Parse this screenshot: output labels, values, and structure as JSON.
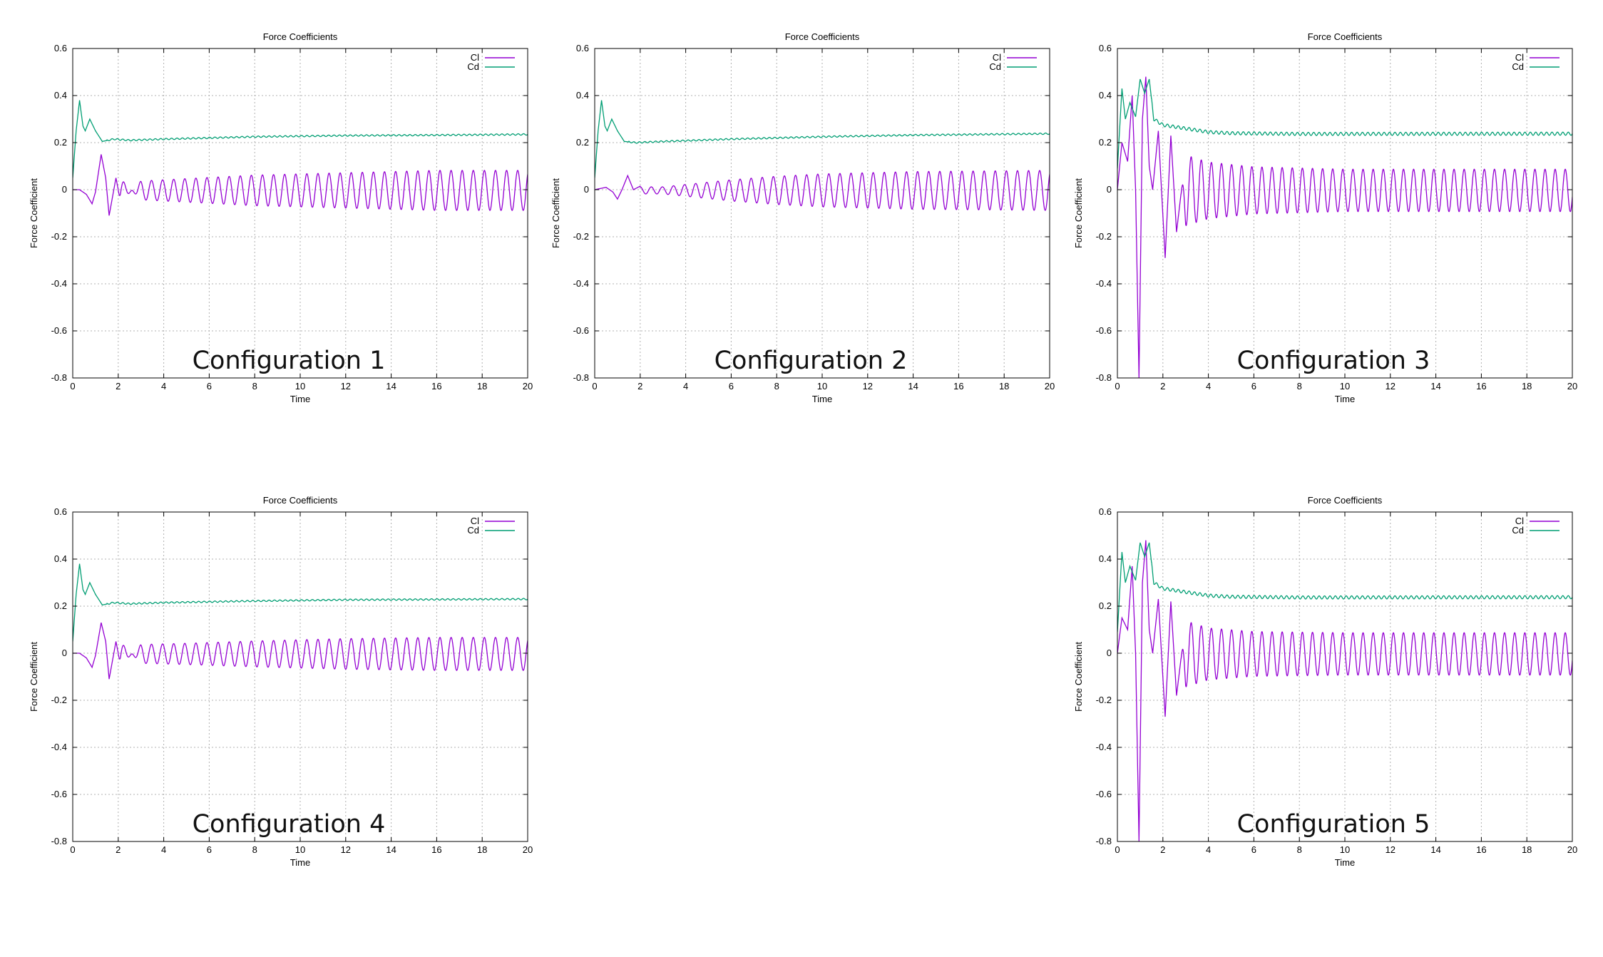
{
  "captions": [
    "Configuration 1",
    "Configuration 2",
    "Configuration 3",
    "Configuration 4",
    "Configuration 5"
  ],
  "colors": {
    "cl": "#9400d3",
    "cd": "#009e73",
    "grid": "#b0b0b0"
  },
  "chart_data": [
    {
      "type": "line",
      "title": "Force Coefficients",
      "xlabel": "Time",
      "ylabel": "Force Coefficient",
      "xlim": [
        0,
        20
      ],
      "ylim": [
        -0.8,
        0.6
      ],
      "xticks": [
        "0",
        "2",
        "4",
        "6",
        "8",
        "10",
        "12",
        "14",
        "16",
        "18",
        "20"
      ],
      "yticks": [
        "0.6",
        "0.4",
        "0.2",
        "0",
        "-0.2",
        "-0.4",
        "-0.6",
        "-0.8"
      ],
      "grid": true,
      "legend": "top-right",
      "series": [
        {
          "name": "Cl",
          "color": "#9400d3",
          "frequency": 2.05,
          "keypoints": [
            [
              0,
              0
            ],
            [
              0.3,
              0.0
            ],
            [
              0.6,
              -0.02
            ],
            [
              0.85,
              -0.06
            ],
            [
              1.0,
              -0.01
            ],
            [
              1.25,
              0.15
            ],
            [
              1.45,
              0.05
            ],
            [
              1.6,
              -0.11
            ],
            [
              1.9,
              0.05
            ],
            [
              2.1,
              -0.05
            ],
            [
              3,
              0.04
            ],
            [
              5,
              0.05
            ],
            [
              8,
              0.065
            ],
            [
              12,
              0.075
            ],
            [
              16,
              0.085
            ],
            [
              20,
              0.085
            ]
          ]
        },
        {
          "name": "Cd",
          "color": "#009e73",
          "keypoints": [
            [
              0,
              0.05
            ],
            [
              0.15,
              0.25
            ],
            [
              0.3,
              0.38
            ],
            [
              0.45,
              0.27
            ],
            [
              0.55,
              0.25
            ],
            [
              0.75,
              0.3
            ],
            [
              1.0,
              0.25
            ],
            [
              1.3,
              0.205
            ],
            [
              1.8,
              0.215
            ],
            [
              2.5,
              0.21
            ],
            [
              4,
              0.215
            ],
            [
              8,
              0.225
            ],
            [
              12,
              0.23
            ],
            [
              16,
              0.232
            ],
            [
              20,
              0.235
            ]
          ]
        }
      ]
    },
    {
      "type": "line",
      "title": "Force Coefficients",
      "xlabel": "Time",
      "ylabel": "Force Coefficient",
      "xlim": [
        0,
        20
      ],
      "ylim": [
        -0.8,
        0.6
      ],
      "xticks": [
        "0",
        "2",
        "4",
        "6",
        "8",
        "10",
        "12",
        "14",
        "16",
        "18",
        "20"
      ],
      "yticks": [
        "0.6",
        "0.4",
        "0.2",
        "0",
        "-0.2",
        "-0.4",
        "-0.6",
        "-0.8"
      ],
      "grid": true,
      "legend": "top-right",
      "series": [
        {
          "name": "Cl",
          "color": "#9400d3",
          "frequency": 2.05,
          "keypoints": [
            [
              0,
              0
            ],
            [
              0.5,
              0.01
            ],
            [
              0.8,
              -0.01
            ],
            [
              1.0,
              -0.04
            ],
            [
              1.2,
              0.0
            ],
            [
              1.45,
              0.06
            ],
            [
              1.7,
              0.0
            ],
            [
              2,
              0.015
            ],
            [
              3,
              0.015
            ],
            [
              4,
              0.025
            ],
            [
              6,
              0.045
            ],
            [
              8,
              0.06
            ],
            [
              10,
              0.07
            ],
            [
              14,
              0.08
            ],
            [
              20,
              0.085
            ]
          ]
        },
        {
          "name": "Cd",
          "color": "#009e73",
          "keypoints": [
            [
              0,
              0.05
            ],
            [
              0.15,
              0.25
            ],
            [
              0.3,
              0.38
            ],
            [
              0.45,
              0.27
            ],
            [
              0.55,
              0.25
            ],
            [
              0.75,
              0.3
            ],
            [
              1.0,
              0.25
            ],
            [
              1.3,
              0.205
            ],
            [
              1.8,
              0.2
            ],
            [
              3,
              0.205
            ],
            [
              6,
              0.215
            ],
            [
              10,
              0.225
            ],
            [
              14,
              0.232
            ],
            [
              20,
              0.238
            ]
          ]
        }
      ]
    },
    {
      "type": "line",
      "title": "Force Coefficients",
      "xlabel": "Time",
      "ylabel": "Force Coefficient",
      "xlim": [
        0,
        20
      ],
      "ylim": [
        -0.8,
        0.6
      ],
      "xticks": [
        "0",
        "2",
        "4",
        "6",
        "8",
        "10",
        "12",
        "14",
        "16",
        "18",
        "20"
      ],
      "yticks": [
        "0.6",
        "0.4",
        "0.2",
        "0",
        "-0.2",
        "-0.4",
        "-0.6",
        "-0.8"
      ],
      "grid": true,
      "legend": "top-right",
      "series": [
        {
          "name": "Cl",
          "color": "#9400d3",
          "frequency": 2.25,
          "keypoints": [
            [
              0,
              0
            ],
            [
              0.2,
              0.2
            ],
            [
              0.45,
              0.12
            ],
            [
              0.65,
              0.4
            ],
            [
              0.8,
              0.0
            ],
            [
              0.95,
              -0.8
            ],
            [
              1.1,
              0.3
            ],
            [
              1.25,
              0.48
            ],
            [
              1.4,
              0.1
            ],
            [
              1.55,
              0.0
            ],
            [
              1.8,
              0.25
            ],
            [
              2.1,
              -0.29
            ],
            [
              2.35,
              0.23
            ],
            [
              2.6,
              -0.18
            ],
            [
              3,
              0.15
            ],
            [
              4,
              0.12
            ],
            [
              6,
              0.1
            ],
            [
              10,
              0.09
            ],
            [
              20,
              0.09
            ]
          ]
        },
        {
          "name": "Cd",
          "color": "#009e73",
          "keypoints": [
            [
              0,
              0.09
            ],
            [
              0.2,
              0.43
            ],
            [
              0.35,
              0.3
            ],
            [
              0.55,
              0.37
            ],
            [
              0.8,
              0.31
            ],
            [
              1.0,
              0.47
            ],
            [
              1.2,
              0.41
            ],
            [
              1.4,
              0.47
            ],
            [
              1.6,
              0.3
            ],
            [
              2,
              0.275
            ],
            [
              3,
              0.26
            ],
            [
              4,
              0.245
            ],
            [
              5,
              0.24
            ],
            [
              8,
              0.237
            ],
            [
              20,
              0.238
            ]
          ]
        }
      ]
    },
    {
      "type": "line",
      "title": "Force Coefficients",
      "xlabel": "Time",
      "ylabel": "Force Coefficient",
      "xlim": [
        0,
        20
      ],
      "ylim": [
        -0.8,
        0.6
      ],
      "xticks": [
        "0",
        "2",
        "4",
        "6",
        "8",
        "10",
        "12",
        "14",
        "16",
        "18",
        "20"
      ],
      "yticks": [
        "0.6",
        "0.4",
        "0.2",
        "0",
        "-0.2",
        "-0.4",
        "-0.6",
        "-0.8"
      ],
      "grid": true,
      "legend": "top-right",
      "series": [
        {
          "name": "Cl",
          "color": "#9400d3",
          "frequency": 2.05,
          "keypoints": [
            [
              0,
              0
            ],
            [
              0.3,
              0.0
            ],
            [
              0.6,
              -0.02
            ],
            [
              0.85,
              -0.06
            ],
            [
              1.0,
              -0.01
            ],
            [
              1.25,
              0.13
            ],
            [
              1.45,
              0.05
            ],
            [
              1.6,
              -0.11
            ],
            [
              1.9,
              0.05
            ],
            [
              2.1,
              -0.05
            ],
            [
              3,
              0.04
            ],
            [
              5,
              0.045
            ],
            [
              8,
              0.055
            ],
            [
              12,
              0.065
            ],
            [
              16,
              0.07
            ],
            [
              20,
              0.07
            ]
          ]
        },
        {
          "name": "Cd",
          "color": "#009e73",
          "keypoints": [
            [
              0,
              0.05
            ],
            [
              0.15,
              0.25
            ],
            [
              0.3,
              0.38
            ],
            [
              0.45,
              0.27
            ],
            [
              0.55,
              0.25
            ],
            [
              0.75,
              0.3
            ],
            [
              1.0,
              0.25
            ],
            [
              1.3,
              0.205
            ],
            [
              1.8,
              0.215
            ],
            [
              2.5,
              0.21
            ],
            [
              4,
              0.215
            ],
            [
              8,
              0.222
            ],
            [
              12,
              0.227
            ],
            [
              20,
              0.23
            ]
          ]
        }
      ]
    },
    {
      "type": "line",
      "title": "Force Coefficients",
      "xlabel": "Time",
      "ylabel": "Force Coefficient",
      "xlim": [
        0,
        20
      ],
      "ylim": [
        -0.8,
        0.6
      ],
      "xticks": [
        "0",
        "2",
        "4",
        "6",
        "8",
        "10",
        "12",
        "14",
        "16",
        "18",
        "20"
      ],
      "yticks": [
        "0.6",
        "0.4",
        "0.2",
        "0",
        "-0.2",
        "-0.4",
        "-0.6",
        "-0.8"
      ],
      "grid": true,
      "legend": "top-right",
      "series": [
        {
          "name": "Cl",
          "color": "#9400d3",
          "frequency": 2.25,
          "keypoints": [
            [
              0,
              0
            ],
            [
              0.2,
              0.15
            ],
            [
              0.45,
              0.1
            ],
            [
              0.65,
              0.37
            ],
            [
              0.8,
              0.0
            ],
            [
              0.95,
              -0.8
            ],
            [
              1.1,
              0.3
            ],
            [
              1.25,
              0.48
            ],
            [
              1.4,
              0.1
            ],
            [
              1.55,
              0.0
            ],
            [
              1.8,
              0.23
            ],
            [
              2.1,
              -0.27
            ],
            [
              2.35,
              0.22
            ],
            [
              2.6,
              -0.18
            ],
            [
              3,
              0.14
            ],
            [
              4,
              0.11
            ],
            [
              6,
              0.095
            ],
            [
              10,
              0.09
            ],
            [
              20,
              0.09
            ]
          ]
        },
        {
          "name": "Cd",
          "color": "#009e73",
          "keypoints": [
            [
              0,
              0.09
            ],
            [
              0.2,
              0.43
            ],
            [
              0.35,
              0.3
            ],
            [
              0.55,
              0.37
            ],
            [
              0.8,
              0.31
            ],
            [
              1.0,
              0.47
            ],
            [
              1.2,
              0.41
            ],
            [
              1.4,
              0.47
            ],
            [
              1.6,
              0.3
            ],
            [
              2,
              0.275
            ],
            [
              3,
              0.26
            ],
            [
              4,
              0.245
            ],
            [
              5,
              0.24
            ],
            [
              8,
              0.237
            ],
            [
              20,
              0.238
            ]
          ]
        }
      ]
    }
  ]
}
